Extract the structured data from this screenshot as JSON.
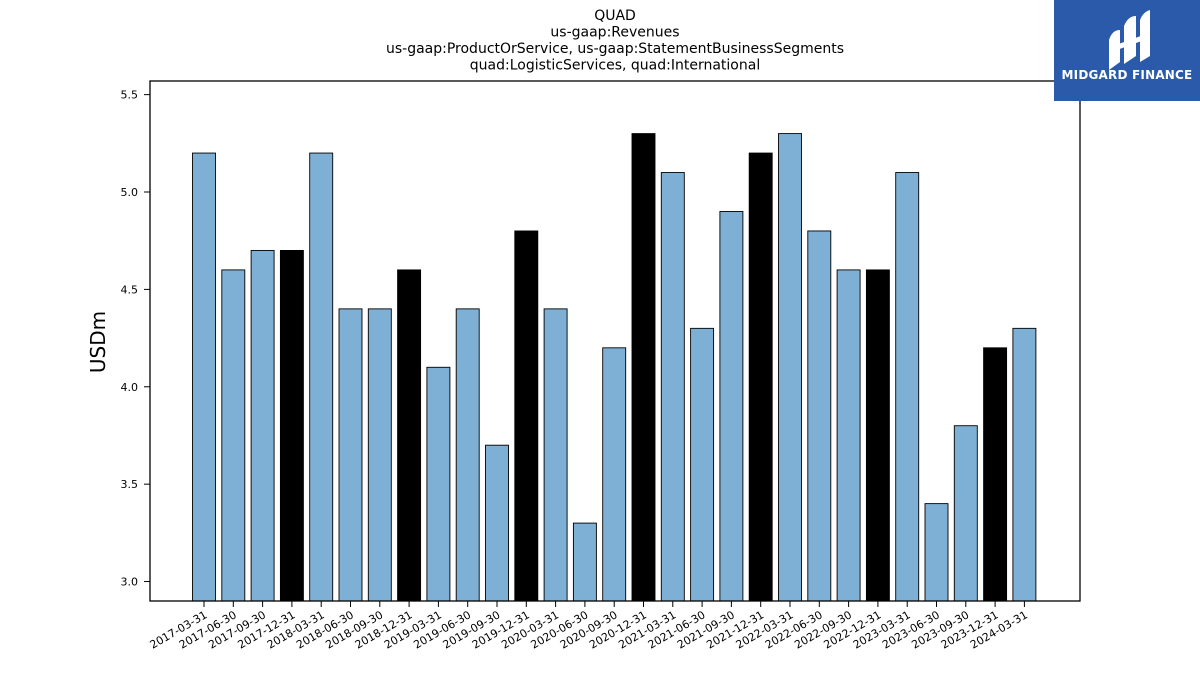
{
  "brand": {
    "name": "MIDGARD FINANCE",
    "bg_color": "#2a5aa9",
    "icon": "midgard-logo-icon"
  },
  "chart_data": {
    "type": "bar",
    "title_lines": [
      "QUAD",
      "us-gaap:Revenues",
      "us-gaap:ProductOrService, us-gaap:StatementBusinessSegments",
      "quad:LogisticServices, quad:International"
    ],
    "ylabel": "USDm",
    "xlabel": "",
    "ylim": [
      2.9,
      5.57
    ],
    "yticks": [
      3.0,
      3.5,
      4.0,
      4.5,
      5.0,
      5.5
    ],
    "grid": false,
    "colors": {
      "quarter": "#7eb0d5",
      "year_end": "#000000",
      "edge": "#000000"
    },
    "categories": [
      "2017-03-31",
      "2017-06-30",
      "2017-09-30",
      "2017-12-31",
      "2018-03-31",
      "2018-06-30",
      "2018-09-30",
      "2018-12-31",
      "2019-03-31",
      "2019-06-30",
      "2019-09-30",
      "2019-12-31",
      "2020-03-31",
      "2020-06-30",
      "2020-09-30",
      "2020-12-31",
      "2021-03-31",
      "2021-06-30",
      "2021-09-30",
      "2021-12-31",
      "2022-03-31",
      "2022-06-30",
      "2022-09-30",
      "2022-12-31",
      "2023-03-31",
      "2023-06-30",
      "2023-09-30",
      "2023-12-31",
      "2024-03-31"
    ],
    "values": [
      5.2,
      4.6,
      4.7,
      4.7,
      5.2,
      4.4,
      4.4,
      4.6,
      4.1,
      4.4,
      3.7,
      4.8,
      4.4,
      3.3,
      4.2,
      5.3,
      5.1,
      4.3,
      4.9,
      5.2,
      5.3,
      4.8,
      4.6,
      4.6,
      5.1,
      3.4,
      3.8,
      4.2,
      4.3
    ]
  }
}
